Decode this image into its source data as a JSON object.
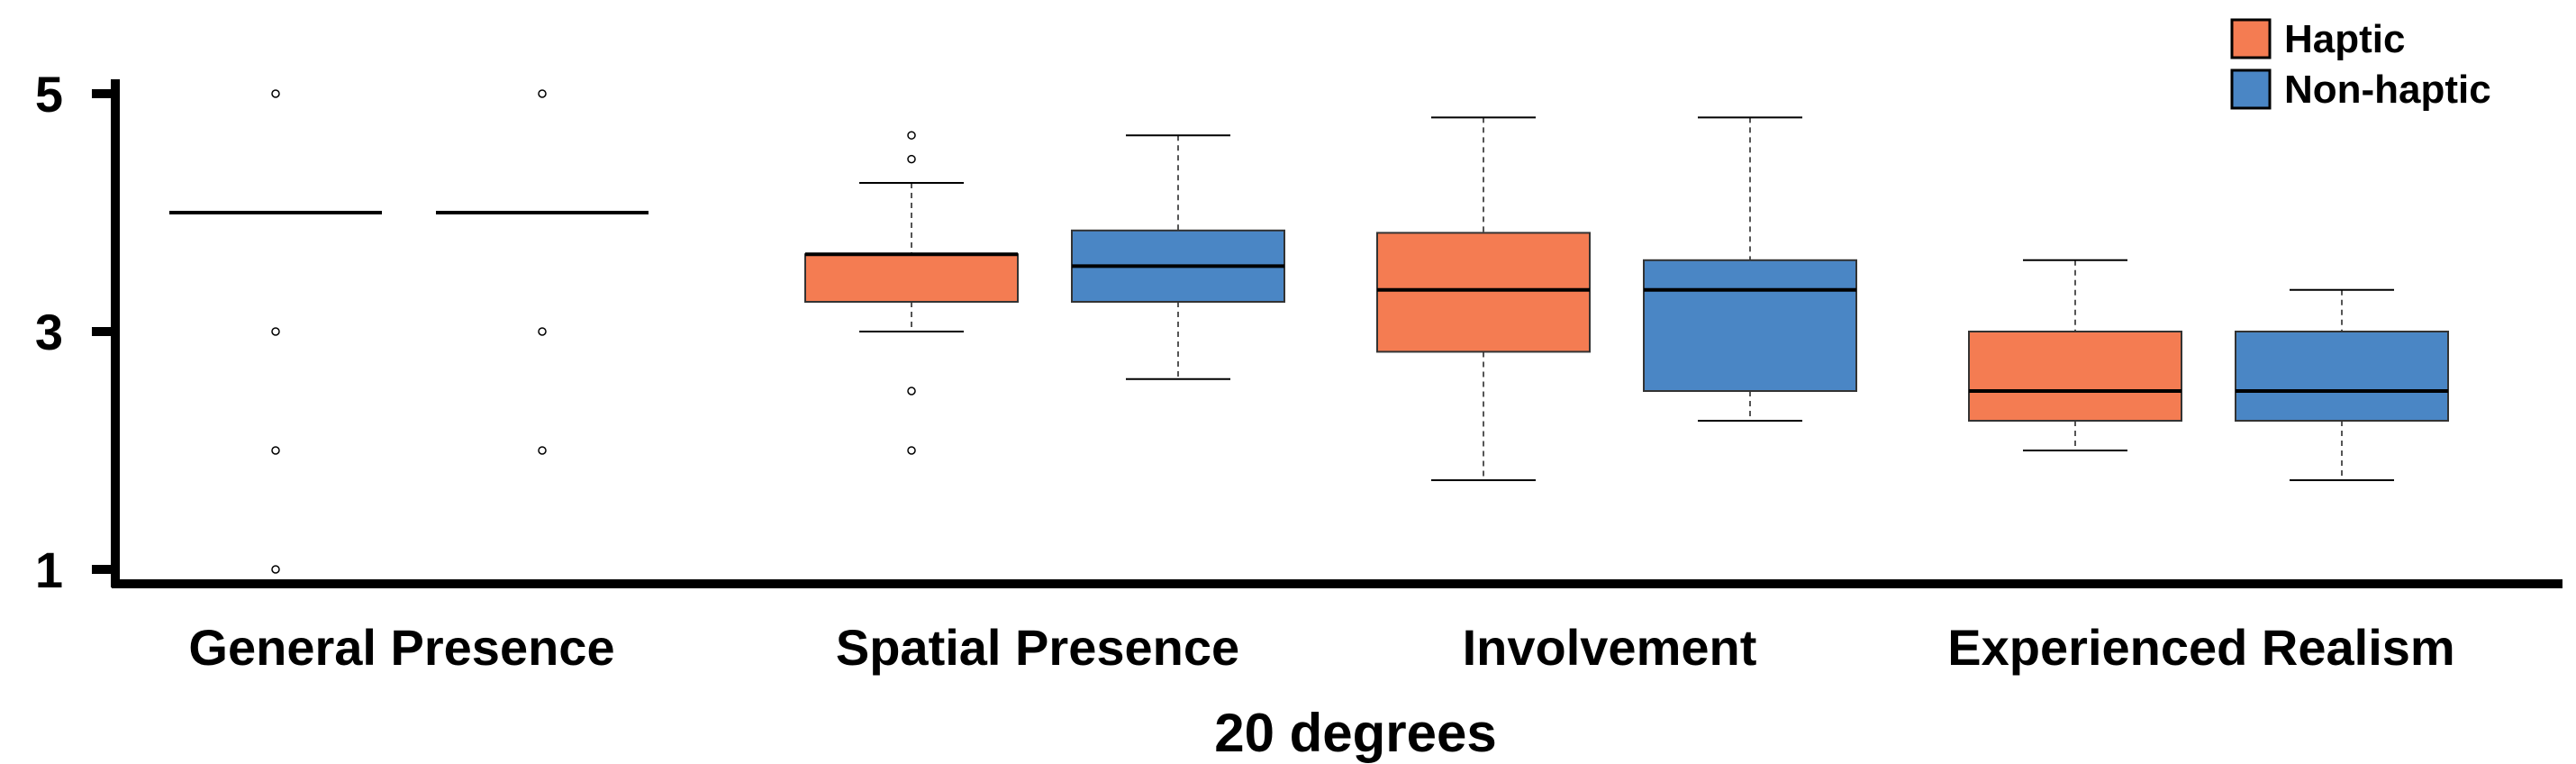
{
  "chart_data": {
    "type": "box",
    "title": "",
    "xlabel": "20 degrees",
    "ylabel": "",
    "ylim": [
      1,
      5
    ],
    "yticks": [
      1,
      3,
      5
    ],
    "grid": false,
    "legend_position": "top-right",
    "categories": [
      "General Presence",
      "Spatial Presence",
      "Involvement",
      "Experienced Realism"
    ],
    "series": [
      {
        "name": "Haptic",
        "color": "#F47C52",
        "boxes": [
          {
            "min": 4.0,
            "q1": 4.0,
            "median": 4.0,
            "q3": 4.0,
            "max": 4.0,
            "outliers": [
              5.0,
              3.0,
              2.0,
              1.0
            ]
          },
          {
            "min": 3.0,
            "q1": 3.25,
            "median": 3.65,
            "q3": 3.65,
            "max": 4.25,
            "outliers": [
              4.65,
              4.45,
              2.5,
              2.0
            ]
          },
          {
            "min": 1.75,
            "q1": 2.83,
            "median": 3.35,
            "q3": 3.83,
            "max": 4.8,
            "outliers": []
          },
          {
            "min": 2.0,
            "q1": 2.25,
            "median": 2.5,
            "q3": 3.0,
            "max": 3.6,
            "outliers": []
          }
        ]
      },
      {
        "name": "Non-haptic",
        "color": "#4A86C5",
        "boxes": [
          {
            "min": 4.0,
            "q1": 4.0,
            "median": 4.0,
            "q3": 4.0,
            "max": 4.0,
            "outliers": [
              5.0,
              3.0,
              2.0
            ]
          },
          {
            "min": 2.6,
            "q1": 3.25,
            "median": 3.55,
            "q3": 3.85,
            "max": 4.65,
            "outliers": []
          },
          {
            "min": 2.25,
            "q1": 2.5,
            "median": 3.35,
            "q3": 3.6,
            "max": 4.8,
            "outliers": []
          },
          {
            "min": 1.75,
            "q1": 2.25,
            "median": 2.5,
            "q3": 3.0,
            "max": 3.35,
            "outliers": []
          }
        ]
      }
    ]
  }
}
